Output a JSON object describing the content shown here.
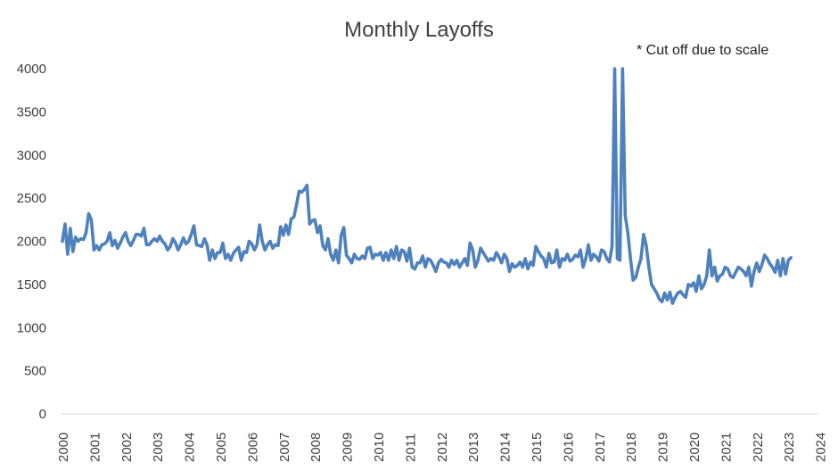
{
  "chart_data": {
    "type": "line",
    "title": "Monthly Layoffs",
    "annotation": "* Cut off due to scale",
    "xlabel": "",
    "ylabel": "",
    "ylim": [
      0,
      4000
    ],
    "yticks": [
      "0",
      "500",
      "1000",
      "1500",
      "2000",
      "2500",
      "3000",
      "3500",
      "4000"
    ],
    "xticks": [
      "2000",
      "2001",
      "2002",
      "2003",
      "2004",
      "2005",
      "2006",
      "2007",
      "2008",
      "2009",
      "2010",
      "2011",
      "2012",
      "2013",
      "2014",
      "2015",
      "2016",
      "2017",
      "2018",
      "2019",
      "2020",
      "2021",
      "2022",
      "2023",
      "2024"
    ],
    "grid": false,
    "legend": "none",
    "line_color": "#4f81bd",
    "start": "2000-01",
    "series": [
      {
        "values": [
          2000,
          2200,
          1850,
          2150,
          1880,
          2050,
          2000,
          2030,
          2020,
          2100,
          2320,
          2250,
          1900,
          1950,
          1900,
          1960,
          1970,
          2000,
          2100,
          1950,
          2010,
          1920,
          1980,
          2050,
          2100,
          2000,
          1950,
          2010,
          2080,
          2080,
          2060,
          2150,
          1960,
          1960,
          2000,
          2030,
          2000,
          2060,
          2000,
          1970,
          1900,
          1940,
          2030,
          1980,
          1900,
          1960,
          2040,
          1970,
          2000,
          2080,
          2180,
          1960,
          1950,
          1940,
          2030,
          1960,
          1780,
          1900,
          1800,
          1870,
          1870,
          1980,
          1800,
          1850,
          1780,
          1860,
          1900,
          1930,
          1780,
          1880,
          1870,
          2000,
          1970,
          1900,
          1960,
          2190,
          2000,
          1900,
          1960,
          2000,
          1920,
          1960,
          1950,
          2170,
          2070,
          2190,
          2080,
          2260,
          2280,
          2420,
          2580,
          2570,
          2600,
          2650,
          2200,
          2240,
          2250,
          2100,
          2180,
          1950,
          1900,
          2030,
          1850,
          1780,
          1900,
          1750,
          2070,
          2160,
          1840,
          1800,
          1750,
          1850,
          1800,
          1790,
          1830,
          1800,
          1920,
          1930,
          1800,
          1850,
          1840,
          1870,
          1780,
          1870,
          1780,
          1900,
          1800,
          1940,
          1780,
          1900,
          1880,
          1770,
          1920,
          1700,
          1680,
          1750,
          1750,
          1830,
          1700,
          1800,
          1780,
          1720,
          1650,
          1750,
          1790,
          1760,
          1750,
          1700,
          1780,
          1730,
          1780,
          1700,
          1750,
          1800,
          1720,
          1980,
          1900,
          1700,
          1780,
          1920,
          1870,
          1820,
          1770,
          1800,
          1780,
          1870,
          1820,
          1750,
          1850,
          1800,
          1650,
          1740,
          1700,
          1720,
          1760,
          1700,
          1800,
          1680,
          1760,
          1720,
          1940,
          1880,
          1830,
          1800,
          1700,
          1860,
          1750,
          1760,
          1900,
          1700,
          1800,
          1780,
          1850,
          1770,
          1790,
          1840,
          1820,
          1900,
          1700,
          1800,
          1960,
          1780,
          1850,
          1820,
          1770,
          1900,
          1880,
          1800,
          1760,
          1940,
          4000,
          1800,
          1780,
          4000,
          2300,
          2100,
          1800,
          1550,
          1580,
          1700,
          1800,
          2080,
          1950,
          1700,
          1500,
          1450,
          1400,
          1330,
          1300,
          1400,
          1320,
          1410,
          1280,
          1350,
          1400,
          1420,
          1380,
          1350,
          1500,
          1480,
          1520,
          1420,
          1600,
          1450,
          1500,
          1600,
          1900,
          1600,
          1700,
          1540,
          1600,
          1620,
          1700,
          1680,
          1600,
          1580,
          1640,
          1700,
          1680,
          1650,
          1600,
          1700,
          1480,
          1650,
          1750,
          1650,
          1730,
          1840,
          1800,
          1740,
          1700,
          1640,
          1780,
          1600,
          1800,
          1620,
          1780,
          1810
        ]
      }
    ]
  }
}
